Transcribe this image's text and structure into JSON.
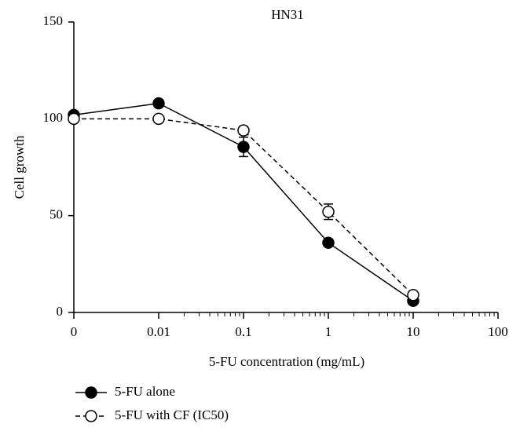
{
  "chart_data": {
    "type": "line",
    "title": "HN31",
    "xlabel": "5-FU concentration (mg/mL)",
    "ylabel": "Cell growth",
    "categories": [
      "0",
      "0.01",
      "0.1",
      "1",
      "10",
      "100"
    ],
    "series": [
      {
        "name": "5-FU alone",
        "color": "#000000",
        "marker": "filled",
        "dashed": false,
        "values": [
          102,
          108,
          85.5,
          36,
          6,
          null
        ],
        "errors": [
          1,
          1,
          5,
          1,
          1,
          null
        ]
      },
      {
        "name": "5-FU with CF (IC50)",
        "color": "#000000",
        "marker": "open",
        "dashed": true,
        "values": [
          100,
          100,
          94,
          52,
          9,
          null
        ],
        "errors": [
          0,
          0,
          2,
          4,
          1,
          null
        ]
      }
    ],
    "ylim": [
      0,
      150
    ],
    "yticks": [
      0,
      50,
      100,
      150
    ],
    "grid": false,
    "legend": "bottom-left"
  }
}
